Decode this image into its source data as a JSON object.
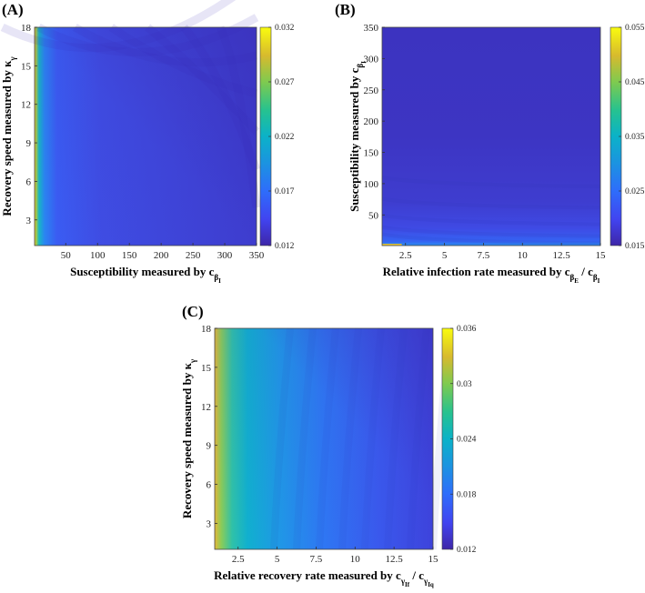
{
  "chart_data": [
    {
      "type": "heatmap",
      "panel": "(A)",
      "xlabel": "Susceptibility measured by c",
      "xlabel_sub": "β",
      "xlabel_subsub": "I",
      "ylabel": "Recovery speed measured by κ",
      "ylabel_sub": "γ",
      "xlim": [
        1,
        350
      ],
      "ylim": [
        1,
        18
      ],
      "xticks": [
        50,
        100,
        150,
        200,
        250,
        300,
        350
      ],
      "yticks": [
        3,
        6,
        9,
        12,
        15,
        18
      ],
      "colorbar": {
        "min": 0.012,
        "max": 0.032,
        "ticks": [
          "0.012",
          "0.017",
          "0.022",
          "0.027",
          "0.032"
        ]
      }
    },
    {
      "type": "heatmap",
      "panel": "(B)",
      "xlabel": "Relative infection rate measured by c",
      "xlabel_sub1": "β",
      "xlabel_subsub1": "E",
      "xlabel_mid": " / c",
      "xlabel_sub2": "β",
      "xlabel_subsub2": "I",
      "ylabel": "Susceptibility measured by c",
      "ylabel_sub": "β",
      "ylabel_subsub": "I",
      "xlim": [
        1,
        15
      ],
      "ylim": [
        1,
        350
      ],
      "xticks": [
        2.5,
        5,
        7.5,
        10,
        12.5,
        15
      ],
      "xticklabels": [
        "2.5",
        "5",
        "7.5",
        "10",
        "12.5",
        "15"
      ],
      "yticks": [
        50,
        100,
        150,
        200,
        250,
        300,
        350
      ],
      "colorbar": {
        "min": 0.015,
        "max": 0.055,
        "ticks": [
          "0.015",
          "0.025",
          "0.035",
          "0.045",
          "0.055"
        ]
      }
    },
    {
      "type": "heatmap",
      "panel": "(C)",
      "xlabel": "Relative recovery rate measured by c",
      "xlabel_sub1": "γ",
      "xlabel_subsub1": "If",
      "xlabel_mid": " / c",
      "xlabel_sub2": "γ",
      "xlabel_subsub2": "Iq",
      "ylabel": "Recovery speed measured by κ",
      "ylabel_sub": "γ",
      "xlim": [
        1,
        15
      ],
      "ylim": [
        1,
        18
      ],
      "xticks": [
        2.5,
        5,
        7.5,
        10,
        12.5,
        15
      ],
      "xticklabels": [
        "2.5",
        "5",
        "7.5",
        "10",
        "12.5",
        "15"
      ],
      "yticks": [
        3,
        6,
        9,
        12,
        15,
        18
      ],
      "colorbar": {
        "min": 0.012,
        "max": 0.036,
        "ticks": [
          "0.012",
          "0.018",
          "0.024",
          "0.03",
          "0.036"
        ]
      }
    }
  ]
}
